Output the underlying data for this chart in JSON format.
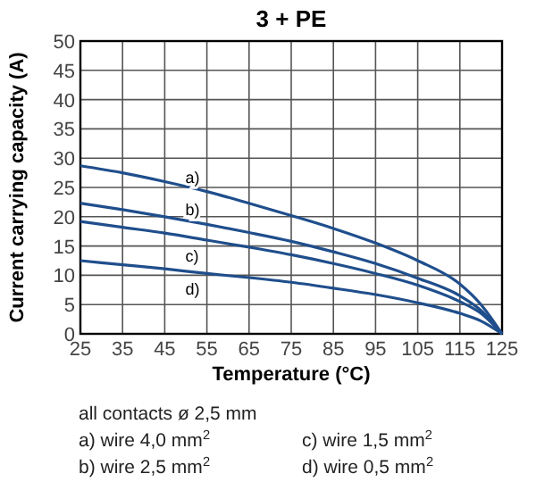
{
  "chart_data": {
    "type": "line",
    "title": "3 + PE",
    "xlabel": "Temperature (°C)",
    "ylabel": "Current carrying capacity (A)",
    "x": [
      25,
      35,
      45,
      55,
      65,
      75,
      85,
      95,
      105,
      115,
      120,
      125
    ],
    "series": [
      {
        "name": "a)",
        "color": "#1f4e8c",
        "values": [
          28.7,
          27.5,
          26,
          24.3,
          22.3,
          20.2,
          18,
          15.5,
          12.5,
          8.5,
          5,
          0
        ]
      },
      {
        "name": "b)",
        "color": "#1f4e8c",
        "values": [
          22.3,
          21.2,
          20,
          18.7,
          17.3,
          15.8,
          14,
          12,
          9.5,
          6.5,
          4,
          0
        ]
      },
      {
        "name": "c)",
        "color": "#1f4e8c",
        "values": [
          19.2,
          18.2,
          17.2,
          16,
          14.8,
          13.5,
          12,
          10.3,
          8.3,
          5.5,
          3.5,
          0
        ]
      },
      {
        "name": "d)",
        "color": "#1f4e8c",
        "values": [
          12.5,
          11.8,
          11.1,
          10.3,
          9.6,
          8.8,
          7.8,
          6.7,
          5.3,
          3.5,
          2.2,
          0
        ]
      }
    ],
    "xlim": [
      25,
      125
    ],
    "xticks": [
      25,
      35,
      45,
      55,
      65,
      75,
      85,
      95,
      105,
      115,
      125
    ],
    "ylim": [
      0,
      50
    ],
    "yticks": [
      0,
      5,
      10,
      15,
      20,
      25,
      30,
      35,
      40,
      45,
      50
    ],
    "grid": true,
    "marker": "none",
    "line_style": "solid",
    "annotations": [
      "all contacts ø 2,5 mm",
      "a) wire 4,0 mm$^{2}$",
      "c)  wire 1,5 mm$^{2}$",
      "b) wire 2,5 mm$^{2}$",
      "d) wire 0,5 mm$^{2}$"
    ]
  }
}
